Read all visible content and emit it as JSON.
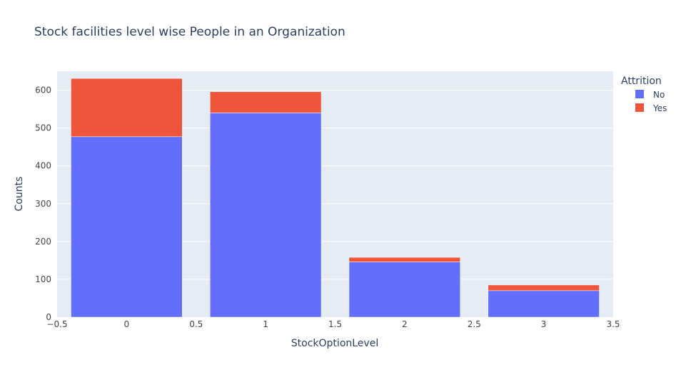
{
  "chart_data": {
    "type": "bar",
    "barmode": "stack",
    "title": "Stock facilities level wise People in an Organization",
    "xlabel": "StockOptionLevel",
    "ylabel": "Counts",
    "x": [
      0,
      1,
      2,
      3
    ],
    "xlim": [
      -0.5,
      3.5
    ],
    "ylim": [
      0,
      650
    ],
    "xticks": [
      -0.5,
      0,
      0.5,
      1,
      1.5,
      2,
      2.5,
      3,
      3.5
    ],
    "xtick_labels": [
      "−0.5",
      "0",
      "0.5",
      "1",
      "1.5",
      "2",
      "2.5",
      "3",
      "3.5"
    ],
    "yticks": [
      0,
      100,
      200,
      300,
      400,
      500,
      600
    ],
    "ytick_labels": [
      "0",
      "100",
      "200",
      "300",
      "400",
      "500",
      "600"
    ],
    "grid": true,
    "legend": {
      "title": "Attrition",
      "position": "right"
    },
    "series": [
      {
        "name": "No",
        "color": "#636efa",
        "values": [
          477,
          540,
          146,
          70
        ]
      },
      {
        "name": "Yes",
        "color": "#ef553b",
        "values": [
          154,
          56,
          12,
          15
        ]
      }
    ]
  },
  "colors": {
    "plot_background": "#e5ecf6",
    "gridline": "#ffffff",
    "text": "#2a3f5f",
    "tick_text": "#444444"
  }
}
